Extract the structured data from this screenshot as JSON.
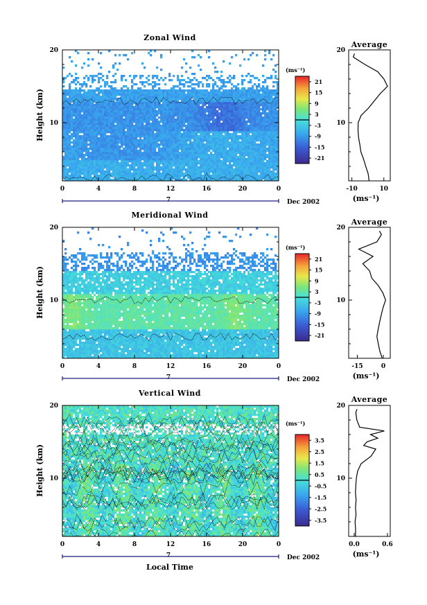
{
  "chart_data": [
    {
      "type": "heatmap",
      "title": "Zonal Wind",
      "ylabel": "Height (km)",
      "ylim": [
        2,
        20
      ],
      "y_ticks": [
        "10",
        "20"
      ],
      "xlim": [
        0,
        24
      ],
      "x_ticks": [
        "0",
        "4",
        "8",
        "12",
        "16",
        "20",
        "0"
      ],
      "day_label": "7",
      "date_label": "Dec 2002",
      "colorbar": {
        "unit": "(ms⁻¹)",
        "range": [
          -24,
          24
        ],
        "labels": [
          "21",
          "15",
          "9",
          "3",
          "-3",
          "-9",
          "-15",
          "-21"
        ]
      },
      "profile": {
        "title": "Average",
        "xlim": [
          -12,
          14
        ],
        "x_ticks": [
          "-10",
          "10"
        ],
        "xlabel": "(ms⁻¹)",
        "y_ticks": [
          "10",
          "20"
        ],
        "heights": [
          2.0,
          3,
          4,
          5,
          6,
          7,
          8,
          9,
          10,
          11,
          12,
          13,
          14,
          15,
          16,
          17,
          18,
          19,
          19.5
        ],
        "values": [
          1,
          0,
          -1,
          -3,
          -4,
          -5,
          -6,
          -6,
          -6,
          -4,
          0,
          4,
          8,
          12,
          10,
          6,
          -2,
          -9,
          -8
        ]
      }
    },
    {
      "type": "heatmap",
      "title": "Meridional Wind",
      "ylabel": "Height (km)",
      "ylim": [
        2,
        20
      ],
      "y_ticks": [
        "10",
        "20"
      ],
      "xlim": [
        0,
        24
      ],
      "x_ticks": [
        "0",
        "4",
        "8",
        "12",
        "16",
        "20",
        "0"
      ],
      "day_label": "7",
      "date_label": "Dec 2002",
      "colorbar": {
        "unit": "(ms⁻¹)",
        "range": [
          -24,
          24
        ],
        "labels": [
          "21",
          "15",
          "9",
          "3",
          "-3",
          "-9",
          "-15",
          "-21"
        ]
      },
      "profile": {
        "title": "Average",
        "xlim": [
          -20,
          4
        ],
        "x_ticks": [
          "-15",
          "0"
        ],
        "xlabel": "(ms⁻¹)",
        "y_ticks": [
          "10",
          "20"
        ],
        "heights": [
          2.0,
          3,
          4,
          5,
          6,
          7,
          8,
          9,
          10,
          11,
          12,
          13,
          14,
          15,
          16,
          17,
          18,
          19,
          19.5
        ],
        "values": [
          -1,
          -2,
          -3,
          -4,
          -3,
          -2,
          -1,
          0,
          1,
          0,
          -3,
          -7,
          -8,
          -12,
          -6,
          -14,
          -4,
          -1,
          -2
        ]
      }
    },
    {
      "type": "heatmap",
      "title": "Vertical Wind",
      "ylabel": "Height (km)",
      "xlabel": "Local Time",
      "ylim": [
        2,
        20
      ],
      "y_ticks": [
        "10",
        "20"
      ],
      "xlim": [
        0,
        24
      ],
      "x_ticks": [
        "0",
        "4",
        "8",
        "12",
        "16",
        "20",
        "0"
      ],
      "day_label": "7",
      "date_label": "Dec 2002",
      "colorbar": {
        "unit": "(ms⁻¹)",
        "range": [
          -4,
          4
        ],
        "labels": [
          "3.5",
          "2.5",
          "1.5",
          "0.5",
          "-0.5",
          "-1.5",
          "-2.5",
          "-3.5"
        ]
      },
      "profile": {
        "title": "Average",
        "xlim": [
          -0.1,
          0.65
        ],
        "x_ticks": [
          "0.0",
          "0.6"
        ],
        "xlabel": "(ms⁻¹)",
        "y_ticks": [
          "10",
          "20"
        ],
        "heights": [
          2.0,
          3,
          4,
          5,
          6,
          7,
          8,
          9,
          10,
          11,
          12,
          13,
          14,
          14.5,
          15,
          15.5,
          16,
          16.5,
          17,
          18,
          19,
          19.5
        ],
        "values": [
          0.02,
          0.03,
          0.02,
          0.03,
          0.02,
          0.03,
          0.02,
          0.03,
          0.04,
          0.06,
          0.12,
          0.25,
          0.35,
          0.2,
          0.3,
          0.4,
          0.25,
          0.55,
          0.1,
          0.05,
          0.03,
          0.05
        ]
      }
    }
  ]
}
